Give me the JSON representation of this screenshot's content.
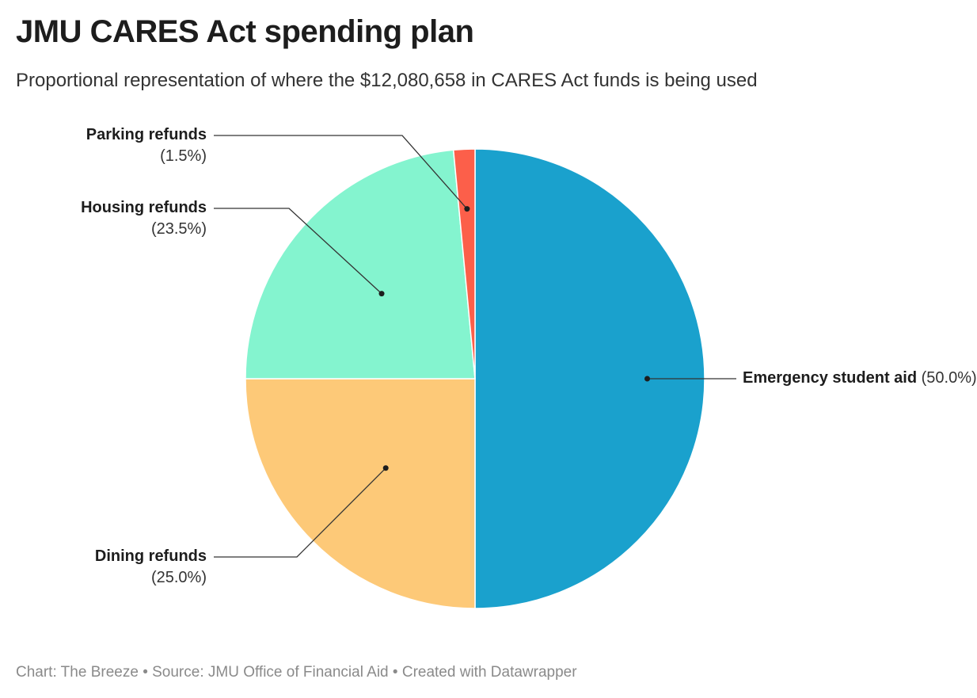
{
  "header": {
    "title": "JMU CARES Act spending plan",
    "subtitle": "Proportional representation of where the $12,080,658 in CARES Act funds is being used"
  },
  "footer": {
    "credit": "Chart: The Breeze",
    "source": "Source: JMU Office of Financial Aid",
    "tool": "Created with Datawrapper",
    "separator": "•"
  },
  "chart_data": {
    "type": "pie",
    "slices": [
      {
        "label": "Emergency student aid",
        "value": 50.0,
        "value_label": "(50.0%)",
        "color": "#1aa1cd"
      },
      {
        "label": "Dining refunds",
        "value": 25.0,
        "value_label": "(25.0%)",
        "color": "#fdc978"
      },
      {
        "label": "Housing refunds",
        "value": 23.5,
        "value_label": "(23.5%)",
        "color": "#84f4cf"
      },
      {
        "label": "Parking refunds",
        "value": 1.5,
        "value_label": "(1.5%)",
        "color": "#fc5f4a"
      }
    ],
    "start": "top",
    "direction": "clockwise",
    "legend": "none"
  }
}
